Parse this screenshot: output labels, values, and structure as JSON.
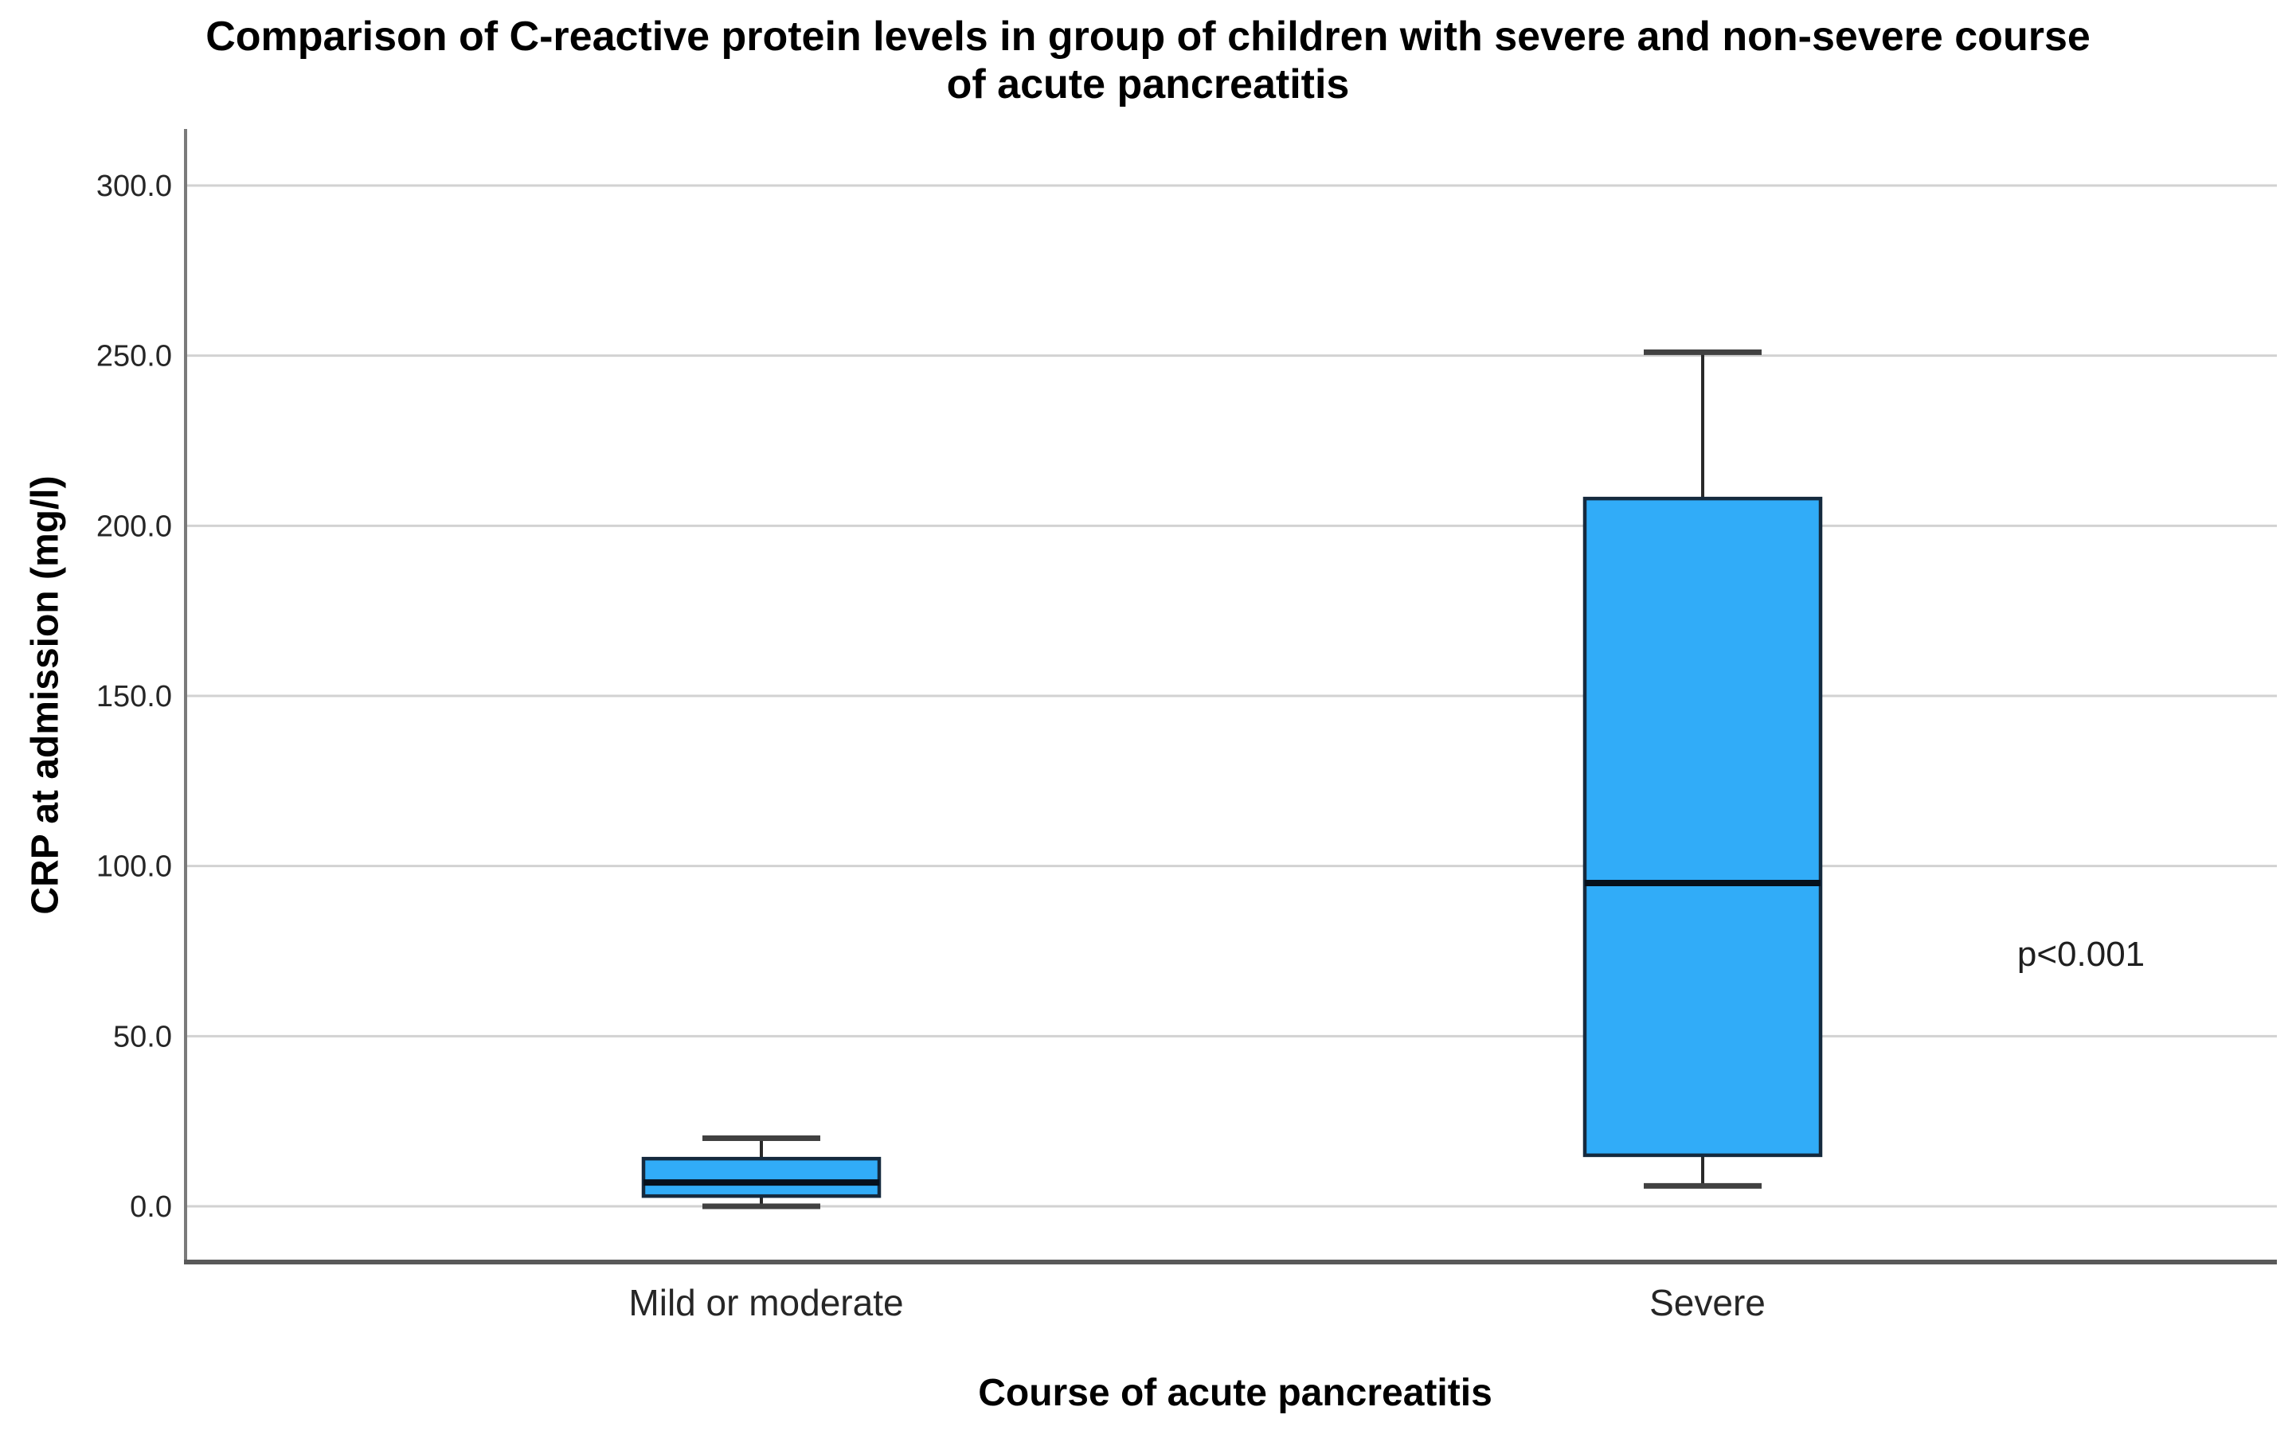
{
  "chart_data": {
    "type": "box",
    "title": "Comparison of C-reactive protein levels in group of children with severe and non-severe course of acute pancreatitis",
    "title_lines": [
      "Comparison of C-reactive protein levels in group of children with severe and non-severe course",
      "of acute pancreatitis"
    ],
    "xlabel": "Course of acute pancreatitis",
    "ylabel": "CRP at admission (mg/l)",
    "categories": [
      "Mild or moderate",
      "Severe"
    ],
    "series": [
      {
        "name": "Mild or moderate",
        "whisker_low": 0,
        "q1": 3,
        "median": 7,
        "q3": 14,
        "whisker_high": 20,
        "outliers": []
      },
      {
        "name": "Severe",
        "whisker_low": 6,
        "q1": 15,
        "median": 95,
        "q3": 208,
        "whisker_high": 251,
        "outliers": []
      }
    ],
    "y_axis": {
      "ticks": [
        0,
        50,
        100,
        150,
        200,
        250,
        300
      ],
      "tick_labels": [
        "0.0",
        "50.0",
        "100.0",
        "150.0",
        "200.0",
        "250.0",
        "300.0"
      ],
      "range": [
        -16,
        317
      ]
    },
    "annotation": "p<0.001",
    "grid": "horizontal",
    "legend_position": "none",
    "colors": {
      "box_fill": "#31acf8",
      "box_border": "#152a3e",
      "median_line": "#06101c",
      "whisker": "#2a2a2a",
      "whisker_cap": "#414141",
      "gridline": "#d2d2d2",
      "y_axis_line": "#7a7a7a",
      "x_axis_line": "#595959",
      "text": "#262626",
      "title_text": "#000000",
      "background": "#ffffff"
    }
  }
}
